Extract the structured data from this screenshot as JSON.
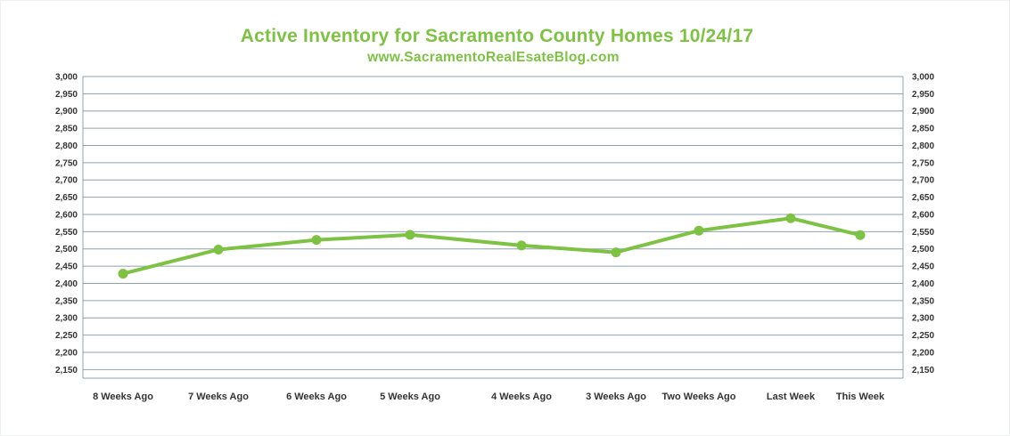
{
  "header": {
    "title": "Active Inventory for Sacramento County Homes 10/24/17",
    "subtitle": "www.SacramentoRealEsateBlog.com"
  },
  "colors": {
    "accent": "#7dc242",
    "grid": "#8fa0ad",
    "axis_text": "#333333"
  },
  "chart_data": {
    "type": "line",
    "title": "Active Inventory for Sacramento County Homes 10/24/17",
    "subtitle": "www.SacramentoRealEsateBlog.com",
    "categories": [
      "8 Weeks Ago",
      "7 Weeks Ago",
      "6 Weeks Ago",
      "5 Weeks Ago",
      "4 Weeks Ago",
      "3 Weeks Ago",
      "Two Weeks Ago",
      "Last Week",
      "This Week"
    ],
    "values": [
      2428,
      2498,
      2526,
      2541,
      2510,
      2490,
      2553,
      2589,
      2540
    ],
    "ylim": [
      2125,
      3000
    ],
    "yticks": [
      2150,
      2200,
      2250,
      2300,
      2350,
      2400,
      2450,
      2500,
      2550,
      2600,
      2650,
      2700,
      2750,
      2800,
      2850,
      2900,
      2950,
      3000
    ],
    "ytick_labels": [
      "2,150",
      "2,200",
      "2,250",
      "2,300",
      "2,350",
      "2,400",
      "2,450",
      "2,500",
      "2,550",
      "2,600",
      "2,650",
      "2,700",
      "2,750",
      "2,800",
      "2,850",
      "2,900",
      "2,950",
      "3,000"
    ],
    "dual_y_axis": true,
    "grid": true,
    "xlabel": "",
    "ylabel": ""
  }
}
